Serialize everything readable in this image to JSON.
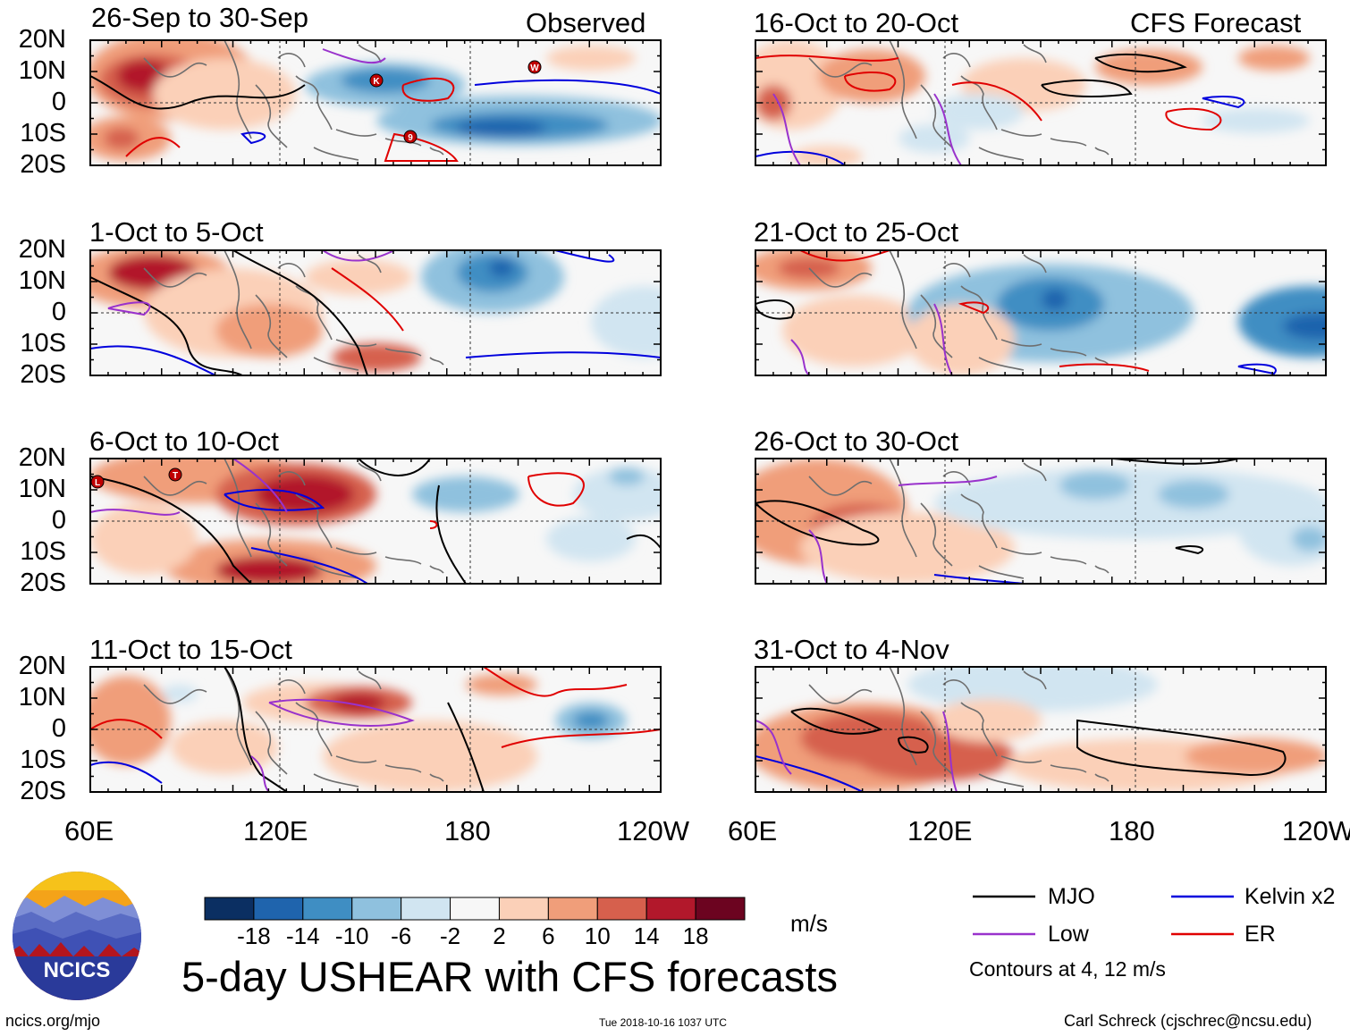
{
  "panels": [
    {
      "id": "p1",
      "period": "26-Sep to 30-Sep",
      "label": "Observed"
    },
    {
      "id": "p2",
      "period": "1-Oct to 5-Oct",
      "label": ""
    },
    {
      "id": "p3",
      "period": "6-Oct to 10-Oct",
      "label": ""
    },
    {
      "id": "p4",
      "period": "11-Oct to 15-Oct",
      "label": ""
    },
    {
      "id": "p5",
      "period": "16-Oct to 20-Oct",
      "label": "CFS Forecast"
    },
    {
      "id": "p6",
      "period": "21-Oct to 25-Oct",
      "label": ""
    },
    {
      "id": "p7",
      "period": "26-Oct to 30-Oct",
      "label": ""
    },
    {
      "id": "p8",
      "period": "31-Oct to 4-Nov",
      "label": ""
    }
  ],
  "axes": {
    "lat_labels": [
      "20N",
      "10N",
      "0",
      "10S",
      "20S"
    ],
    "lon_labels": [
      "60E",
      "120E",
      "180",
      "120W"
    ]
  },
  "colorbar": {
    "labels": [
      "-18",
      "-14",
      "-10",
      "-6",
      "-2",
      "2",
      "6",
      "10",
      "14",
      "18"
    ],
    "colors": [
      "#0b2f62",
      "#1f64ad",
      "#3f8ec3",
      "#8fc1de",
      "#d1e5f1",
      "#f7f7f7",
      "#fbd0b8",
      "#f09e7a",
      "#d6604d",
      "#b2182b",
      "#6c0420"
    ],
    "unit": "m/s"
  },
  "legend": {
    "items": [
      {
        "label": "MJO",
        "color": "#000000"
      },
      {
        "label": "Kelvin x2",
        "color": "#0000dd"
      },
      {
        "label": "Low",
        "color": "#9932cc"
      },
      {
        "label": "ER",
        "color": "#e00000"
      }
    ],
    "note": "Contours at 4, 12 m/s"
  },
  "storm_markers": {
    "p1": [
      "K",
      "W",
      "9"
    ],
    "p3": [
      "L",
      "T"
    ]
  },
  "title": "5-day USHEAR with CFS forecasts",
  "logo_text": "NCICS",
  "footer": {
    "url": "ncics.org/mjo",
    "timestamp": "Tue 2018-10-16 1037 UTC",
    "author": "Carl Schreck (cjschrec@ncsu.edu)"
  }
}
